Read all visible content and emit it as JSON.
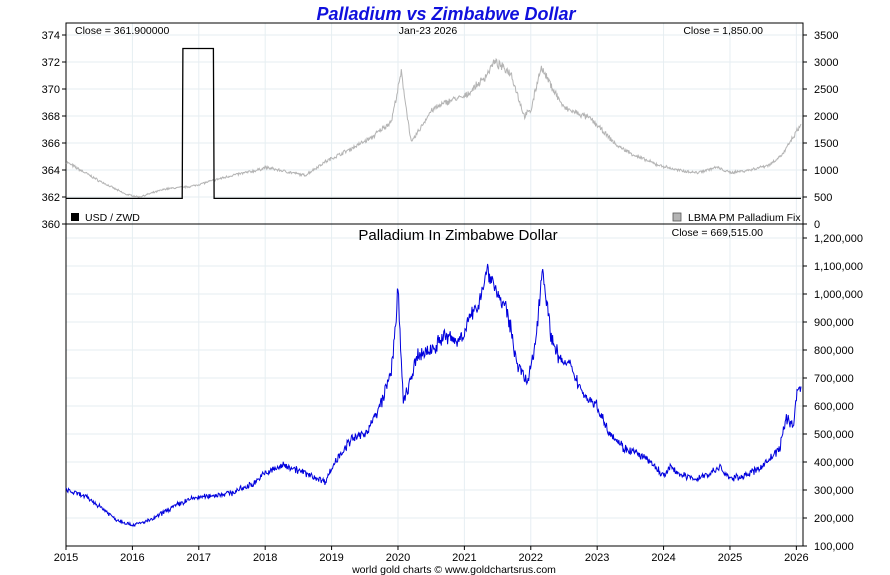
{
  "title": "Palladium vs Zimbabwe Dollar",
  "footer": "world gold charts © www.goldchartsrus.com",
  "colors": {
    "title": "#1010dd",
    "usd_zwd": "#000000",
    "palladium_usd": "#b4b4b4",
    "palladium_zwd": "#0000dd",
    "grid": "#e6eef2"
  },
  "chart_data": [
    {
      "type": "line",
      "panel": "top",
      "header_left": "Close = 361.900000",
      "header_center": "Jan-23  2026",
      "header_right": "Close = 1,850.00",
      "left_axis": {
        "ylim": [
          360,
          374
        ],
        "ticks": [
          "360",
          "362",
          "364",
          "366",
          "368",
          "370",
          "372",
          "374"
        ]
      },
      "right_axis": {
        "ylim": [
          0,
          3500
        ],
        "ticks": [
          "0",
          "500",
          "1000",
          "1500",
          "2000",
          "2500",
          "3000",
          "3500"
        ]
      },
      "xlim": [
        2015.0,
        2026.1
      ],
      "x_ticks": [
        "2015",
        "2016",
        "2017",
        "2018",
        "2019",
        "2020",
        "2021",
        "2022",
        "2023",
        "2024",
        "2025",
        "2026"
      ],
      "legend": [
        {
          "label": "USD / ZWD",
          "axis": "left",
          "swatch": "black"
        },
        {
          "label": "LBMA PM Palladium Fix",
          "axis": "right",
          "swatch": "gray"
        }
      ],
      "series": [
        {
          "name": "USD / ZWD",
          "axis": "left",
          "x": [
            2015.0,
            2016.75,
            2016.76,
            2017.22,
            2017.23,
            2026.07
          ],
          "values": [
            361.9,
            361.9,
            373.0,
            373.0,
            361.9,
            361.9
          ]
        },
        {
          "name": "LBMA PM Palladium Fix",
          "axis": "right",
          "x": [
            2015.0,
            2015.5,
            2015.9,
            2016.1,
            2016.5,
            2016.9,
            2017.5,
            2017.9,
            2018.0,
            2018.6,
            2018.9,
            2019.3,
            2019.6,
            2019.9,
            2020.05,
            2020.2,
            2020.5,
            2020.8,
            2021.0,
            2021.3,
            2021.45,
            2021.7,
            2021.9,
            2022.0,
            2022.15,
            2022.5,
            2022.9,
            2023.3,
            2023.6,
            2023.9,
            2024.2,
            2024.5,
            2024.8,
            2025.0,
            2025.3,
            2025.6,
            2025.8,
            2026.0,
            2026.07
          ],
          "values": [
            1150,
            800,
            550,
            500,
            650,
            700,
            900,
            1000,
            1050,
            900,
            1150,
            1400,
            1600,
            1900,
            2800,
            1500,
            2100,
            2300,
            2350,
            2700,
            3000,
            2800,
            2000,
            2100,
            2900,
            2150,
            1950,
            1450,
            1250,
            1100,
            1000,
            950,
            1050,
            950,
            1000,
            1100,
            1300,
            1700,
            1850
          ]
        }
      ]
    },
    {
      "type": "line",
      "panel": "bottom",
      "title": "Palladium In Zimbabwe Dollar",
      "header_right": "Close = 669,515.00",
      "right_axis": {
        "ylim": [
          100000,
          1200000
        ],
        "ticks": [
          "100,000",
          "200,000",
          "300,000",
          "400,000",
          "500,000",
          "600,000",
          "700,000",
          "800,000",
          "900,000",
          "1,000,000",
          "1,100,000",
          "1,200,000"
        ]
      },
      "xlim": [
        2015.0,
        2026.1
      ],
      "x_ticks": [
        "2015",
        "2016",
        "2017",
        "2018",
        "2019",
        "2020",
        "2021",
        "2022",
        "2023",
        "2024",
        "2025",
        "2026"
      ],
      "series": [
        {
          "name": "Palladium In Zimbabwe Dollar",
          "x": [
            2015.0,
            2015.3,
            2015.55,
            2015.75,
            2016.0,
            2016.1,
            2016.3,
            2016.5,
            2016.7,
            2016.9,
            2017.2,
            2017.5,
            2017.8,
            2018.0,
            2018.3,
            2018.6,
            2018.9,
            2019.1,
            2019.3,
            2019.5,
            2019.7,
            2019.9,
            2020.0,
            2020.08,
            2020.2,
            2020.3,
            2020.5,
            2020.7,
            2020.9,
            2021.0,
            2021.2,
            2021.35,
            2021.5,
            2021.65,
            2021.8,
            2021.95,
            2022.05,
            2022.18,
            2022.3,
            2022.45,
            2022.6,
            2022.8,
            2023.0,
            2023.15,
            2023.4,
            2023.6,
            2023.8,
            2024.0,
            2024.1,
            2024.3,
            2024.5,
            2024.7,
            2024.85,
            2025.0,
            2025.2,
            2025.4,
            2025.6,
            2025.75,
            2025.85,
            2025.95,
            2026.02,
            2026.07
          ],
          "values": [
            300000,
            275000,
            235000,
            195000,
            175000,
            180000,
            195000,
            225000,
            250000,
            270000,
            280000,
            290000,
            320000,
            360000,
            390000,
            360000,
            330000,
            420000,
            480000,
            500000,
            580000,
            720000,
            1010000,
            610000,
            700000,
            780000,
            800000,
            850000,
            830000,
            870000,
            960000,
            1090000,
            1000000,
            930000,
            750000,
            680000,
            790000,
            1100000,
            850000,
            760000,
            740000,
            640000,
            600000,
            520000,
            450000,
            430000,
            400000,
            350000,
            380000,
            350000,
            340000,
            360000,
            380000,
            340000,
            350000,
            370000,
            410000,
            450000,
            560000,
            530000,
            660000,
            669515
          ]
        }
      ]
    }
  ]
}
